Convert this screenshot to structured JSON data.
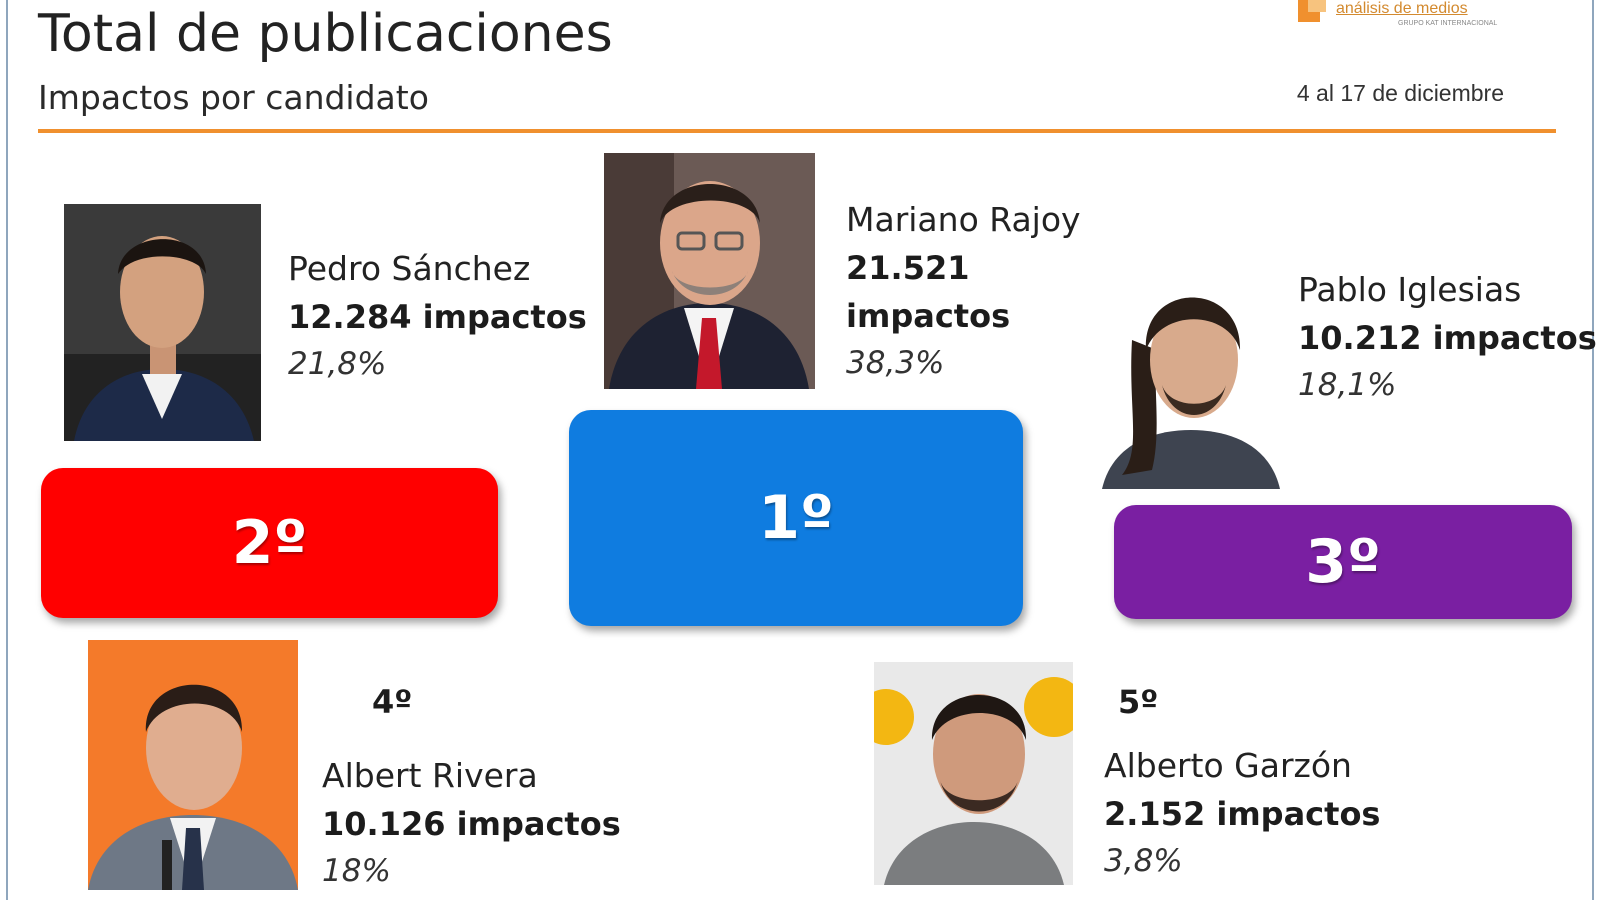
{
  "header": {
    "title": "Total de publicaciones",
    "subtitle": "Impactos por candidato",
    "date_range": "4 al 17 de diciembre",
    "logo_text": "análisis de medios",
    "logo_tagline": "GRUPO KAT INTERNACIONAL"
  },
  "colors": {
    "accent_rule": "#f0902e",
    "podium_1": "#0f7ce0",
    "podium_2": "#ff0000",
    "podium_3": "#7a1fa2"
  },
  "podium": {
    "first": "1º",
    "second": "2º",
    "third": "3º"
  },
  "candidates": [
    {
      "rank": "1º",
      "name": "Mariano Rajoy",
      "impacts_value": "21.521",
      "impacts_unit": "impactos",
      "percent": "38,3%"
    },
    {
      "rank": "2º",
      "name": "Pedro Sánchez",
      "impacts": "12.284 impactos",
      "percent": "21,8%"
    },
    {
      "rank": "3º",
      "name": "Pablo Iglesias",
      "impacts": "10.212 impactos",
      "percent": "18,1%"
    },
    {
      "rank": "4º",
      "name": "Albert Rivera",
      "impacts": "10.126 impactos",
      "percent": "18%"
    },
    {
      "rank": "5º",
      "name": "Alberto Garzón",
      "impacts": "2.152 impactos",
      "percent": "3,8%"
    }
  ],
  "chart_data": {
    "type": "bar",
    "title": "Total de publicaciones",
    "subtitle": "Impactos por candidato",
    "categories": [
      "Mariano Rajoy",
      "Pedro Sánchez",
      "Pablo Iglesias",
      "Albert Rivera",
      "Alberto Garzón"
    ],
    "values": [
      21521,
      12284,
      10212,
      10126,
      2152
    ],
    "percentages": [
      38.3,
      21.8,
      18.1,
      18,
      3.8
    ],
    "ranks": [
      "1º",
      "2º",
      "3º",
      "4º",
      "5º"
    ]
  }
}
